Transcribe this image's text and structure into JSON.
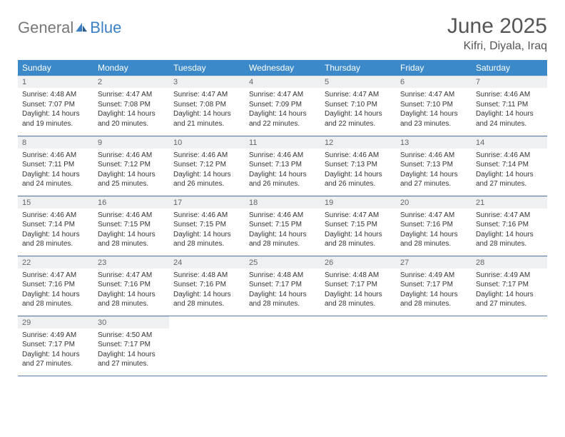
{
  "logo": {
    "part1": "General",
    "part2": "Blue"
  },
  "title": "June 2025",
  "location": "Kifri, Diyala, Iraq",
  "colors": {
    "header_bg": "#3b89c9",
    "header_fg": "#ffffff",
    "daynum_bg": "#eef0f2",
    "row_divider": "#5a7fa8",
    "logo_gray": "#777777",
    "logo_blue": "#3b7fc4"
  },
  "weekdays": [
    "Sunday",
    "Monday",
    "Tuesday",
    "Wednesday",
    "Thursday",
    "Friday",
    "Saturday"
  ],
  "days": [
    {
      "n": 1,
      "sr": "4:48 AM",
      "ss": "7:07 PM",
      "dh": 14,
      "dm": 19
    },
    {
      "n": 2,
      "sr": "4:47 AM",
      "ss": "7:08 PM",
      "dh": 14,
      "dm": 20
    },
    {
      "n": 3,
      "sr": "4:47 AM",
      "ss": "7:08 PM",
      "dh": 14,
      "dm": 21
    },
    {
      "n": 4,
      "sr": "4:47 AM",
      "ss": "7:09 PM",
      "dh": 14,
      "dm": 22
    },
    {
      "n": 5,
      "sr": "4:47 AM",
      "ss": "7:10 PM",
      "dh": 14,
      "dm": 22
    },
    {
      "n": 6,
      "sr": "4:47 AM",
      "ss": "7:10 PM",
      "dh": 14,
      "dm": 23
    },
    {
      "n": 7,
      "sr": "4:46 AM",
      "ss": "7:11 PM",
      "dh": 14,
      "dm": 24
    },
    {
      "n": 8,
      "sr": "4:46 AM",
      "ss": "7:11 PM",
      "dh": 14,
      "dm": 24
    },
    {
      "n": 9,
      "sr": "4:46 AM",
      "ss": "7:12 PM",
      "dh": 14,
      "dm": 25
    },
    {
      "n": 10,
      "sr": "4:46 AM",
      "ss": "7:12 PM",
      "dh": 14,
      "dm": 26
    },
    {
      "n": 11,
      "sr": "4:46 AM",
      "ss": "7:13 PM",
      "dh": 14,
      "dm": 26
    },
    {
      "n": 12,
      "sr": "4:46 AM",
      "ss": "7:13 PM",
      "dh": 14,
      "dm": 26
    },
    {
      "n": 13,
      "sr": "4:46 AM",
      "ss": "7:13 PM",
      "dh": 14,
      "dm": 27
    },
    {
      "n": 14,
      "sr": "4:46 AM",
      "ss": "7:14 PM",
      "dh": 14,
      "dm": 27
    },
    {
      "n": 15,
      "sr": "4:46 AM",
      "ss": "7:14 PM",
      "dh": 14,
      "dm": 28
    },
    {
      "n": 16,
      "sr": "4:46 AM",
      "ss": "7:15 PM",
      "dh": 14,
      "dm": 28
    },
    {
      "n": 17,
      "sr": "4:46 AM",
      "ss": "7:15 PM",
      "dh": 14,
      "dm": 28
    },
    {
      "n": 18,
      "sr": "4:46 AM",
      "ss": "7:15 PM",
      "dh": 14,
      "dm": 28
    },
    {
      "n": 19,
      "sr": "4:47 AM",
      "ss": "7:15 PM",
      "dh": 14,
      "dm": 28
    },
    {
      "n": 20,
      "sr": "4:47 AM",
      "ss": "7:16 PM",
      "dh": 14,
      "dm": 28
    },
    {
      "n": 21,
      "sr": "4:47 AM",
      "ss": "7:16 PM",
      "dh": 14,
      "dm": 28
    },
    {
      "n": 22,
      "sr": "4:47 AM",
      "ss": "7:16 PM",
      "dh": 14,
      "dm": 28
    },
    {
      "n": 23,
      "sr": "4:47 AM",
      "ss": "7:16 PM",
      "dh": 14,
      "dm": 28
    },
    {
      "n": 24,
      "sr": "4:48 AM",
      "ss": "7:16 PM",
      "dh": 14,
      "dm": 28
    },
    {
      "n": 25,
      "sr": "4:48 AM",
      "ss": "7:17 PM",
      "dh": 14,
      "dm": 28
    },
    {
      "n": 26,
      "sr": "4:48 AM",
      "ss": "7:17 PM",
      "dh": 14,
      "dm": 28
    },
    {
      "n": 27,
      "sr": "4:49 AM",
      "ss": "7:17 PM",
      "dh": 14,
      "dm": 28
    },
    {
      "n": 28,
      "sr": "4:49 AM",
      "ss": "7:17 PM",
      "dh": 14,
      "dm": 27
    },
    {
      "n": 29,
      "sr": "4:49 AM",
      "ss": "7:17 PM",
      "dh": 14,
      "dm": 27
    },
    {
      "n": 30,
      "sr": "4:50 AM",
      "ss": "7:17 PM",
      "dh": 14,
      "dm": 27
    }
  ],
  "labels": {
    "sunrise": "Sunrise:",
    "sunset": "Sunset:",
    "daylight": "Daylight:",
    "hours": "hours",
    "and": "and",
    "minutes": "minutes."
  }
}
